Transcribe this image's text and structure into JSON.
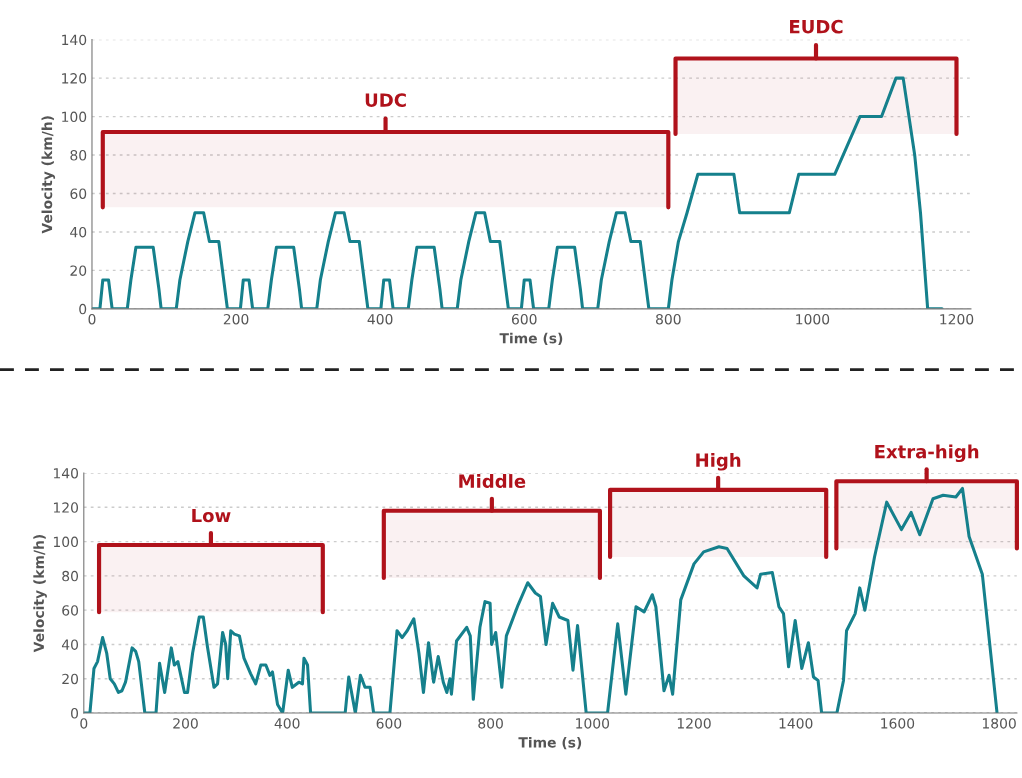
{
  "chart_data": [
    {
      "type": "line",
      "xlabel": "Time (s)",
      "ylabel": "Velocity (km/h)",
      "xlim": [
        0,
        1220
      ],
      "ylim": [
        0,
        140
      ],
      "xticks": [
        0,
        200,
        400,
        600,
        800,
        1000,
        1200
      ],
      "yticks": [
        0,
        20,
        40,
        60,
        80,
        100,
        120,
        140
      ],
      "grid": "y",
      "series": [
        {
          "color": "#15808c",
          "x": [
            0,
            11,
            15,
            23,
            28,
            49,
            54,
            61,
            85,
            93,
            96,
            117,
            122,
            133,
            143,
            155,
            163,
            176,
            188,
            195,
            206,
            210,
            218,
            223,
            244,
            249,
            256,
            280,
            288,
            291,
            312,
            317,
            328,
            338,
            350,
            358,
            371,
            383,
            390,
            401,
            405,
            413,
            418,
            439,
            444,
            451,
            475,
            483,
            486,
            507,
            512,
            523,
            533,
            545,
            553,
            566,
            578,
            585,
            596,
            600,
            608,
            613,
            634,
            639,
            646,
            670,
            678,
            681,
            702,
            707,
            718,
            728,
            740,
            748,
            761,
            773,
            780,
            800,
            805,
            814,
            826,
            841,
            891,
            899,
            968,
            981,
            1031,
            1066,
            1096,
            1116,
            1126,
            1142,
            1150,
            1160,
            1180
          ],
          "values": [
            0,
            0,
            15,
            15,
            0,
            0,
            15,
            32,
            32,
            10,
            0,
            0,
            15,
            35,
            50,
            50,
            35,
            35,
            0,
            0,
            0,
            15,
            15,
            0,
            0,
            15,
            32,
            32,
            10,
            0,
            0,
            15,
            35,
            50,
            50,
            35,
            35,
            0,
            0,
            0,
            15,
            15,
            0,
            0,
            15,
            32,
            32,
            10,
            0,
            0,
            15,
            35,
            50,
            50,
            35,
            35,
            0,
            0,
            0,
            15,
            15,
            0,
            0,
            15,
            32,
            32,
            10,
            0,
            0,
            15,
            35,
            50,
            50,
            35,
            35,
            0,
            0,
            0,
            15,
            35,
            50,
            70,
            70,
            50,
            50,
            70,
            70,
            100,
            100,
            120,
            120,
            80,
            50,
            0,
            0
          ]
        }
      ],
      "bands": [
        {
          "axis": "x",
          "from": 15,
          "to": 800,
          "label": "UDC",
          "color": "#b0121b"
        },
        {
          "axis": "x",
          "from": 810,
          "to": 1200,
          "label": "EUDC",
          "color": "#b0121b"
        }
      ]
    },
    {
      "type": "line",
      "xlabel": "Time (s)",
      "ylabel": "Velocity (km/h)",
      "xlim": [
        0,
        1835
      ],
      "ylim": [
        0,
        140
      ],
      "xticks": [
        0,
        200,
        400,
        600,
        800,
        1000,
        1200,
        1400,
        1600,
        1800
      ],
      "yticks": [
        0,
        20,
        40,
        60,
        80,
        100,
        120,
        140
      ],
      "grid": "y",
      "series": [
        {
          "color": "#15808c",
          "x": [
            0,
            12,
            20,
            27,
            37,
            45,
            52,
            60,
            68,
            75,
            82,
            95,
            102,
            108,
            120,
            142,
            149,
            159,
            172,
            178,
            185,
            198,
            204,
            214,
            227,
            235,
            243,
            256,
            263,
            273,
            279,
            283,
            289,
            296,
            306,
            315,
            328,
            338,
            348,
            358,
            366,
            371,
            381,
            391,
            402,
            410,
            423,
            430,
            433,
            440,
            446,
            514,
            521,
            534,
            544,
            553,
            563,
            570,
            602,
            616,
            626,
            636,
            649,
            659,
            668,
            678,
            688,
            697,
            707,
            714,
            720,
            723,
            733,
            753,
            760,
            766,
            779,
            789,
            799,
            802,
            810,
            822,
            831,
            854,
            873,
            888,
            898,
            909,
            922,
            935,
            952,
            962,
            971,
            988,
            1030,
            1050,
            1066,
            1086,
            1102,
            1118,
            1125,
            1141,
            1151,
            1158,
            1174,
            1200,
            1219,
            1249,
            1265,
            1298,
            1324,
            1331,
            1354,
            1367,
            1376,
            1386,
            1399,
            1412,
            1425,
            1435,
            1444,
            1451,
            1481,
            1494,
            1500,
            1517,
            1526,
            1536,
            1555,
            1579,
            1608,
            1627,
            1644,
            1670,
            1690,
            1715,
            1728,
            1741,
            1767,
            1796
          ],
          "values": [
            0,
            0,
            26,
            30,
            44,
            35,
            20,
            17,
            12,
            13,
            18,
            38,
            36,
            30,
            0,
            0,
            29,
            12,
            38,
            28,
            30,
            12,
            12,
            35,
            56,
            56,
            39,
            15,
            17,
            47,
            40,
            20,
            48,
            46,
            45,
            32,
            23,
            17,
            28,
            28,
            22,
            24,
            5,
            0,
            25,
            15,
            18,
            17,
            32,
            28,
            0,
            0,
            21,
            0,
            22,
            15,
            15,
            0,
            0,
            48,
            44,
            48,
            55,
            35,
            12,
            41,
            18,
            33,
            18,
            12,
            20,
            11,
            42,
            50,
            45,
            8,
            50,
            65,
            64,
            40,
            47,
            15,
            45,
            63,
            76,
            70,
            68,
            40,
            64,
            56,
            54,
            25,
            51,
            0,
            0,
            52,
            11,
            62,
            59,
            69,
            62,
            13,
            22,
            11,
            66,
            87,
            94,
            97,
            96,
            80,
            73,
            81,
            82,
            62,
            58,
            27,
            54,
            26,
            41,
            21,
            19,
            0,
            0,
            19,
            48,
            58,
            73,
            60,
            91,
            123,
            107,
            117,
            104,
            125,
            127,
            126,
            131,
            103,
            81,
            0
          ]
        }
      ],
      "bands": [
        {
          "axis": "x",
          "from": 30,
          "to": 470,
          "label": "Low",
          "color": "#b0121b"
        },
        {
          "axis": "x",
          "from": 590,
          "to": 1015,
          "label": "Middle",
          "color": "#b0121b"
        },
        {
          "axis": "x",
          "from": 1035,
          "to": 1460,
          "label": "High",
          "color": "#b0121b"
        },
        {
          "axis": "x",
          "from": 1480,
          "to": 1835,
          "label": "Extra-high",
          "color": "#b0121b"
        }
      ]
    }
  ]
}
